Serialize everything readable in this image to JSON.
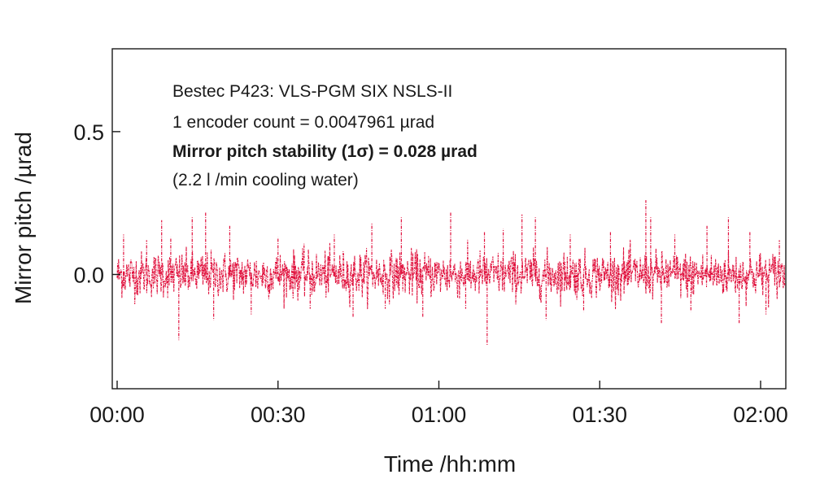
{
  "chart_data": {
    "type": "line",
    "xlabel": "Time /hh:mm",
    "ylabel": "Mirror pitch /µrad",
    "x_tick_labels": [
      "00:00",
      "00:30",
      "01:00",
      "01:30",
      "02:00"
    ],
    "x_tick_minutes": [
      0,
      30,
      60,
      90,
      120
    ],
    "xlim_minutes": [
      0,
      125
    ],
    "y_ticks": [
      0.0,
      0.5
    ],
    "y_tick_labels": [
      "0.0",
      "0.5"
    ],
    "ylim": [
      -0.4,
      0.79
    ],
    "grid": false,
    "legend": "none",
    "annotations": [
      "Bestec P423: VLS-PGM SIX NSLS-II",
      "1 encoder count = 0.0047961 µrad",
      "Mirror pitch stability (1σ) = 0.028 µrad",
      "(2.2 l /min cooling water)"
    ],
    "series": [
      {
        "color": "#e0103c",
        "style": "dash-dot",
        "mean": 0.0,
        "sigma": 0.028,
        "x_range_minutes": [
          0,
          124.5
        ],
        "spikes": [
          {
            "x": 1.2,
            "y": 0.14
          },
          {
            "x": 5.5,
            "y": 0.12
          },
          {
            "x": 8.3,
            "y": 0.19
          },
          {
            "x": 10.0,
            "y": 0.13
          },
          {
            "x": 11.5,
            "y": -0.23
          },
          {
            "x": 14.0,
            "y": 0.2
          },
          {
            "x": 16.5,
            "y": 0.22
          },
          {
            "x": 18.0,
            "y": -0.16
          },
          {
            "x": 21.0,
            "y": 0.17
          },
          {
            "x": 25.0,
            "y": -0.14
          },
          {
            "x": 30.0,
            "y": 0.13
          },
          {
            "x": 36.0,
            "y": -0.12
          },
          {
            "x": 40.5,
            "y": 0.14
          },
          {
            "x": 44.0,
            "y": -0.15
          },
          {
            "x": 47.5,
            "y": 0.18
          },
          {
            "x": 50.0,
            "y": -0.12
          },
          {
            "x": 53.0,
            "y": 0.2
          },
          {
            "x": 57.0,
            "y": -0.15
          },
          {
            "x": 62.2,
            "y": 0.22
          },
          {
            "x": 65.0,
            "y": -0.12
          },
          {
            "x": 68.5,
            "y": 0.15
          },
          {
            "x": 69.0,
            "y": -0.25
          },
          {
            "x": 72.0,
            "y": 0.16
          },
          {
            "x": 75.5,
            "y": 0.21
          },
          {
            "x": 78.0,
            "y": 0.2
          },
          {
            "x": 80.0,
            "y": -0.16
          },
          {
            "x": 84.5,
            "y": 0.14
          },
          {
            "x": 87.0,
            "y": -0.13
          },
          {
            "x": 92.0,
            "y": 0.15
          },
          {
            "x": 98.6,
            "y": 0.26
          },
          {
            "x": 99.5,
            "y": 0.2
          },
          {
            "x": 101.5,
            "y": -0.17
          },
          {
            "x": 104.0,
            "y": 0.14
          },
          {
            "x": 107.0,
            "y": -0.13
          },
          {
            "x": 110.0,
            "y": 0.17
          },
          {
            "x": 114.0,
            "y": 0.2
          },
          {
            "x": 116.0,
            "y": -0.17
          },
          {
            "x": 118.0,
            "y": 0.15
          },
          {
            "x": 121.0,
            "y": -0.14
          },
          {
            "x": 123.5,
            "y": 0.12
          }
        ]
      }
    ]
  }
}
